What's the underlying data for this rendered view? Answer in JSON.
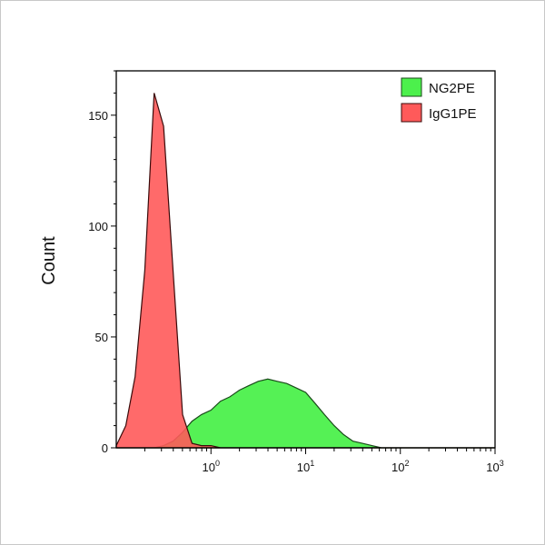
{
  "chart_data": {
    "type": "area",
    "title": "",
    "xlabel": "",
    "ylabel": "Count",
    "x_scale": "log",
    "xlim": [
      0.1,
      1000
    ],
    "ylim": [
      0,
      170
    ],
    "x_ticks": [
      1,
      10,
      100,
      1000
    ],
    "x_tick_labels": [
      {
        "base": "10",
        "exp": "0"
      },
      {
        "base": "10",
        "exp": "1"
      },
      {
        "base": "10",
        "exp": "2"
      },
      {
        "base": "10",
        "exp": "3"
      }
    ],
    "y_ticks": [
      0,
      50,
      100,
      150
    ],
    "y_tick_labels": [
      "0",
      "50",
      "100",
      "150"
    ],
    "grid": false,
    "legend_placement": "top-right",
    "x": [
      0.1,
      0.126,
      0.158,
      0.2,
      0.251,
      0.316,
      0.398,
      0.501,
      0.631,
      0.794,
      1,
      1.26,
      1.58,
      2,
      2.51,
      3.16,
      3.98,
      5.01,
      6.31,
      7.94,
      10,
      12.6,
      15.8,
      20,
      25.1,
      31.6,
      39.8,
      50.1,
      63.1,
      79.4,
      100,
      126,
      158,
      200,
      251,
      316,
      398,
      501,
      631,
      794,
      1000
    ],
    "series": [
      {
        "name": "NG2PE",
        "color": "#4cf04c",
        "edge": "#1a4a1a",
        "values": [
          0,
          0,
          0,
          0,
          0,
          1,
          3,
          7,
          12,
          15,
          17,
          21,
          23,
          26,
          28,
          30,
          31,
          30,
          29,
          27,
          25,
          20,
          15,
          10,
          6,
          3,
          2,
          1,
          0,
          0,
          0,
          0,
          0,
          0,
          0,
          0,
          0,
          0,
          0,
          0,
          0
        ]
      },
      {
        "name": "IgG1PE",
        "color": "#ff5a5a",
        "edge": "#3a0a0a",
        "values": [
          1,
          10,
          32,
          80,
          160,
          145,
          80,
          15,
          2,
          1,
          1,
          0,
          0,
          0,
          0,
          0,
          0,
          0,
          0,
          0,
          0,
          0,
          0,
          0,
          0,
          0,
          0,
          0,
          0,
          0,
          0,
          0,
          0,
          0,
          0,
          0,
          0,
          0,
          0,
          0,
          0
        ]
      }
    ]
  }
}
